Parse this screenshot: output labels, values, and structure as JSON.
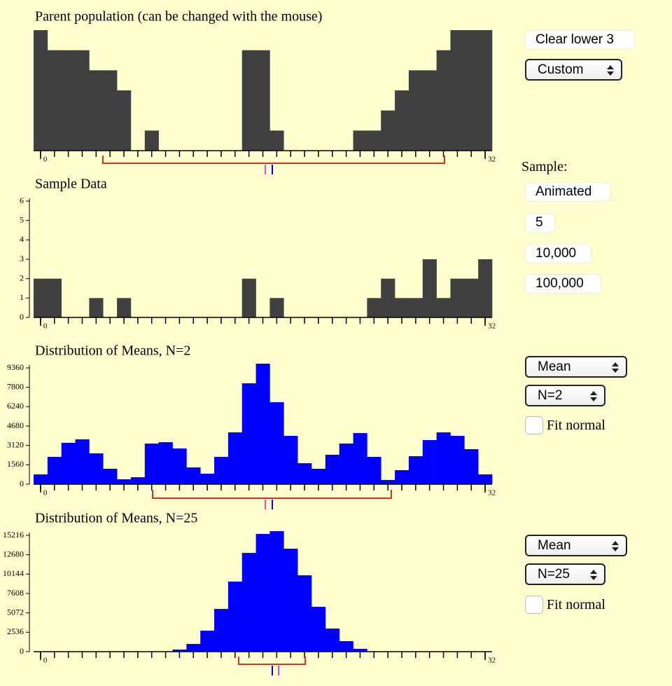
{
  "panels": [
    {
      "type": "bar",
      "title": "Parent population (can be changed with the mouse)",
      "color": "#404040",
      "values": [
        6,
        5,
        5,
        5,
        4,
        4,
        3,
        0,
        1,
        0,
        0,
        0,
        0,
        0,
        0,
        5,
        5,
        1,
        0,
        0,
        0,
        0,
        0,
        1,
        1,
        2,
        3,
        4,
        4,
        5,
        6,
        6,
        6
      ],
      "ylim": [
        0,
        6
      ],
      "xticks": [
        0,
        32
      ]
    },
    {
      "type": "bar",
      "title": "Sample Data",
      "color": "#404040",
      "values": [
        2,
        2,
        0,
        0,
        1,
        0,
        1,
        0,
        0,
        0,
        0,
        0,
        0,
        0,
        0,
        2,
        0,
        1,
        0,
        0,
        0,
        0,
        0,
        0,
        1,
        2,
        1,
        1,
        3,
        1,
        2,
        2,
        3
      ],
      "ylim": [
        0,
        6
      ],
      "yticks": [
        0,
        1,
        2,
        3,
        4,
        5,
        6
      ],
      "xticks": [
        0,
        32
      ]
    },
    {
      "type": "bar",
      "title": "Distribution of Means, N=2",
      "color": "#0000ff",
      "values": [
        790,
        2200,
        3330,
        3610,
        2480,
        1240,
        395,
        560,
        3270,
        3380,
        2875,
        1350,
        845,
        2200,
        4170,
        8120,
        9700,
        6600,
        3890,
        1690,
        1240,
        2370,
        3270,
        4115,
        2200,
        340,
        1130,
        2255,
        3550,
        4170,
        3890,
        2820,
        790
      ],
      "ylim": [
        0,
        9360
      ],
      "yticks": [
        0,
        1560,
        3120,
        4680,
        6240,
        7800,
        9360
      ],
      "xticks": [
        0,
        32
      ]
    },
    {
      "type": "bar",
      "title": "Distribution of Means, N=25",
      "color": "#0000ff",
      "values": [
        0,
        0,
        0,
        0,
        0,
        0,
        0,
        0,
        0,
        0,
        275,
        1010,
        2750,
        5590,
        9170,
        12920,
        15400,
        15770,
        13470,
        9990,
        5870,
        3020,
        1375,
        370,
        0,
        0,
        0,
        0,
        0,
        0,
        0,
        0,
        0
      ],
      "ylim": [
        0,
        15216
      ],
      "yticks": [
        0,
        2536,
        5072,
        7608,
        10144,
        12680,
        15216
      ],
      "xticks": [
        0,
        32
      ]
    }
  ],
  "controls": {
    "clear_button": "Clear lower 3",
    "population_select": "Custom",
    "sample_label": "Sample:",
    "sample_buttons": [
      "Animated",
      "5",
      "10,000",
      "100,000"
    ],
    "panel_controls": [
      {
        "statistic": "Mean",
        "n": "N=2",
        "fit_label": "Fit normal"
      },
      {
        "statistic": "Mean",
        "n": "N=25",
        "fit_label": "Fit normal"
      }
    ]
  }
}
